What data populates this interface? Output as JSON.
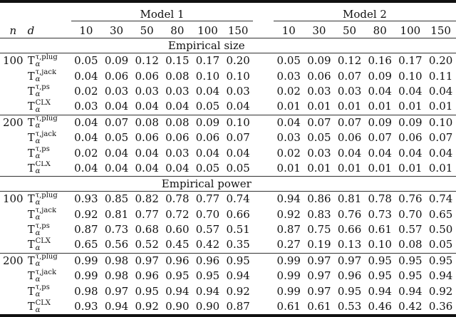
{
  "header": {
    "n_label": "n",
    "d_label": "d",
    "models": [
      "Model 1",
      "Model 2"
    ],
    "d_values": [
      "10",
      "30",
      "50",
      "80",
      "100",
      "150"
    ]
  },
  "sections": [
    {
      "title": "Empirical size",
      "groups": [
        {
          "n": "100",
          "rows": [
            {
              "base": "T",
              "sup": "τ,plug",
              "sub": "α",
              "m1": [
                "0.05",
                "0.09",
                "0.12",
                "0.15",
                "0.17",
                "0.20"
              ],
              "m2": [
                "0.05",
                "0.09",
                "0.12",
                "0.16",
                "0.17",
                "0.20"
              ]
            },
            {
              "base": "T",
              "sup": "τ,jack",
              "sub": "α",
              "m1": [
                "0.04",
                "0.06",
                "0.06",
                "0.08",
                "0.10",
                "0.10"
              ],
              "m2": [
                "0.03",
                "0.06",
                "0.07",
                "0.09",
                "0.10",
                "0.11"
              ]
            },
            {
              "base": "T",
              "sup": "τ,ps",
              "sub": "α",
              "m1": [
                "0.02",
                "0.03",
                "0.03",
                "0.03",
                "0.04",
                "0.03"
              ],
              "m2": [
                "0.02",
                "0.03",
                "0.03",
                "0.04",
                "0.04",
                "0.04"
              ]
            },
            {
              "base": "T",
              "sup": "CLX",
              "sub": "α",
              "m1": [
                "0.03",
                "0.04",
                "0.04",
                "0.04",
                "0.05",
                "0.04"
              ],
              "m2": [
                "0.01",
                "0.01",
                "0.01",
                "0.01",
                "0.01",
                "0.01"
              ]
            }
          ]
        },
        {
          "n": "200",
          "rows": [
            {
              "base": "T",
              "sup": "τ,plug",
              "sub": "α",
              "m1": [
                "0.04",
                "0.07",
                "0.08",
                "0.08",
                "0.09",
                "0.10"
              ],
              "m2": [
                "0.04",
                "0.07",
                "0.07",
                "0.09",
                "0.09",
                "0.10"
              ]
            },
            {
              "base": "T",
              "sup": "τ,jack",
              "sub": "α",
              "m1": [
                "0.04",
                "0.05",
                "0.06",
                "0.06",
                "0.06",
                "0.07"
              ],
              "m2": [
                "0.03",
                "0.05",
                "0.06",
                "0.07",
                "0.06",
                "0.07"
              ]
            },
            {
              "base": "T",
              "sup": "τ,ps",
              "sub": "α",
              "m1": [
                "0.02",
                "0.04",
                "0.04",
                "0.03",
                "0.04",
                "0.04"
              ],
              "m2": [
                "0.02",
                "0.03",
                "0.04",
                "0.04",
                "0.04",
                "0.04"
              ]
            },
            {
              "base": "T",
              "sup": "CLX",
              "sub": "α",
              "m1": [
                "0.04",
                "0.04",
                "0.04",
                "0.04",
                "0.05",
                "0.05"
              ],
              "m2": [
                "0.01",
                "0.01",
                "0.01",
                "0.01",
                "0.01",
                "0.01"
              ]
            }
          ]
        }
      ]
    },
    {
      "title": "Empirical power",
      "groups": [
        {
          "n": "100",
          "rows": [
            {
              "base": "T",
              "sup": "τ,plug",
              "sub": "α",
              "m1": [
                "0.93",
                "0.85",
                "0.82",
                "0.78",
                "0.77",
                "0.74"
              ],
              "m2": [
                "0.94",
                "0.86",
                "0.81",
                "0.78",
                "0.76",
                "0.74"
              ]
            },
            {
              "base": "T",
              "sup": "τ,jack",
              "sub": "α",
              "m1": [
                "0.92",
                "0.81",
                "0.77",
                "0.72",
                "0.70",
                "0.66"
              ],
              "m2": [
                "0.92",
                "0.83",
                "0.76",
                "0.73",
                "0.70",
                "0.65"
              ]
            },
            {
              "base": "T",
              "sup": "τ,ps",
              "sub": "α",
              "m1": [
                "0.87",
                "0.73",
                "0.68",
                "0.60",
                "0.57",
                "0.51"
              ],
              "m2": [
                "0.87",
                "0.75",
                "0.66",
                "0.61",
                "0.57",
                "0.50"
              ]
            },
            {
              "base": "T",
              "sup": "CLX",
              "sub": "α",
              "m1": [
                "0.65",
                "0.56",
                "0.52",
                "0.45",
                "0.42",
                "0.35"
              ],
              "m2": [
                "0.27",
                "0.19",
                "0.13",
                "0.10",
                "0.08",
                "0.05"
              ]
            }
          ]
        },
        {
          "n": "200",
          "rows": [
            {
              "base": "T",
              "sup": "τ,plug",
              "sub": "α",
              "m1": [
                "0.99",
                "0.98",
                "0.97",
                "0.96",
                "0.96",
                "0.95"
              ],
              "m2": [
                "0.99",
                "0.97",
                "0.97",
                "0.95",
                "0.95",
                "0.95"
              ]
            },
            {
              "base": "T",
              "sup": "τ,jack",
              "sub": "α",
              "m1": [
                "0.99",
                "0.98",
                "0.96",
                "0.95",
                "0.95",
                "0.94"
              ],
              "m2": [
                "0.99",
                "0.97",
                "0.96",
                "0.95",
                "0.95",
                "0.94"
              ]
            },
            {
              "base": "T",
              "sup": "τ,ps",
              "sub": "α",
              "m1": [
                "0.98",
                "0.97",
                "0.95",
                "0.94",
                "0.94",
                "0.92"
              ],
              "m2": [
                "0.99",
                "0.97",
                "0.95",
                "0.94",
                "0.94",
                "0.92"
              ]
            },
            {
              "base": "T",
              "sup": "CLX",
              "sub": "α",
              "m1": [
                "0.93",
                "0.94",
                "0.92",
                "0.90",
                "0.90",
                "0.87"
              ],
              "m2": [
                "0.61",
                "0.61",
                "0.53",
                "0.46",
                "0.42",
                "0.36"
              ]
            }
          ]
        }
      ]
    }
  ]
}
